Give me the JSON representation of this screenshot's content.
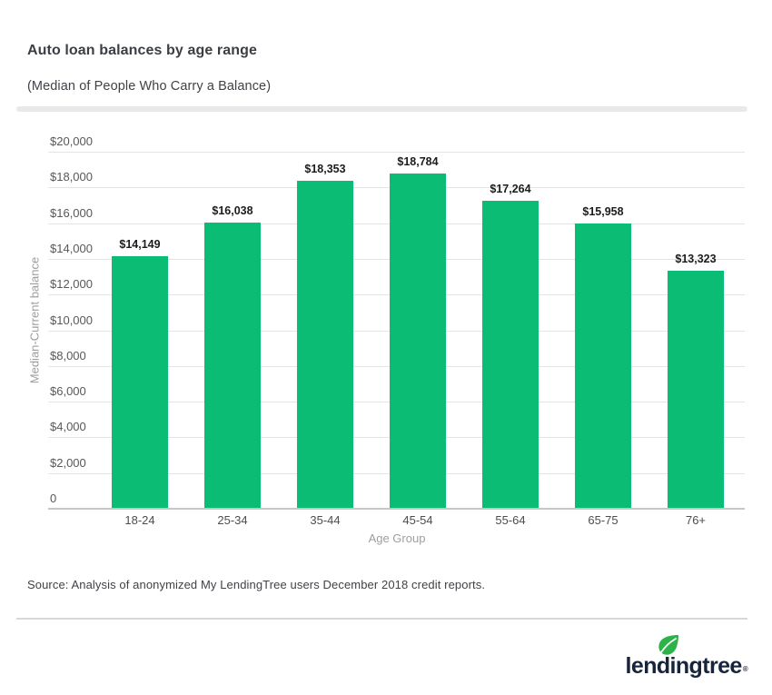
{
  "header": {
    "title": "Auto loan balances by age range",
    "subtitle": "(Median of People Who Carry a Balance)"
  },
  "chart_data": {
    "type": "bar",
    "title": "Auto loan balances by age range",
    "subtitle": "(Median of People Who Carry a Balance)",
    "categories": [
      "18-24",
      "25-34",
      "35-44",
      "45-54",
      "55-64",
      "65-75",
      "76+"
    ],
    "values": [
      14149,
      16038,
      18353,
      18784,
      17264,
      15958,
      13323
    ],
    "value_labels": [
      "$14,149",
      "$16,038",
      "$18,353",
      "$18,784",
      "$17,264",
      "$15,958",
      "$13,323"
    ],
    "xlabel": "Age Group",
    "ylabel": "Median-Current balance",
    "ylim": [
      0,
      20000
    ],
    "ytick_step": 2000,
    "ytick_labels": [
      "0",
      "$2,000",
      "$4,000",
      "$6,000",
      "$8,000",
      "$10,000",
      "$12,000",
      "$14,000",
      "$16,000",
      "$18,000",
      "$20,000"
    ],
    "bar_color": "#0bbd74",
    "grid": true,
    "legend": "none"
  },
  "source": {
    "text": "Source: Analysis of anonymized My LendingTree users December 2018 credit reports."
  },
  "footer": {
    "logo_text": "lendingtree",
    "registered_mark": "®",
    "leaf_color": "#2eb34b",
    "logo_color": "#16243c"
  }
}
